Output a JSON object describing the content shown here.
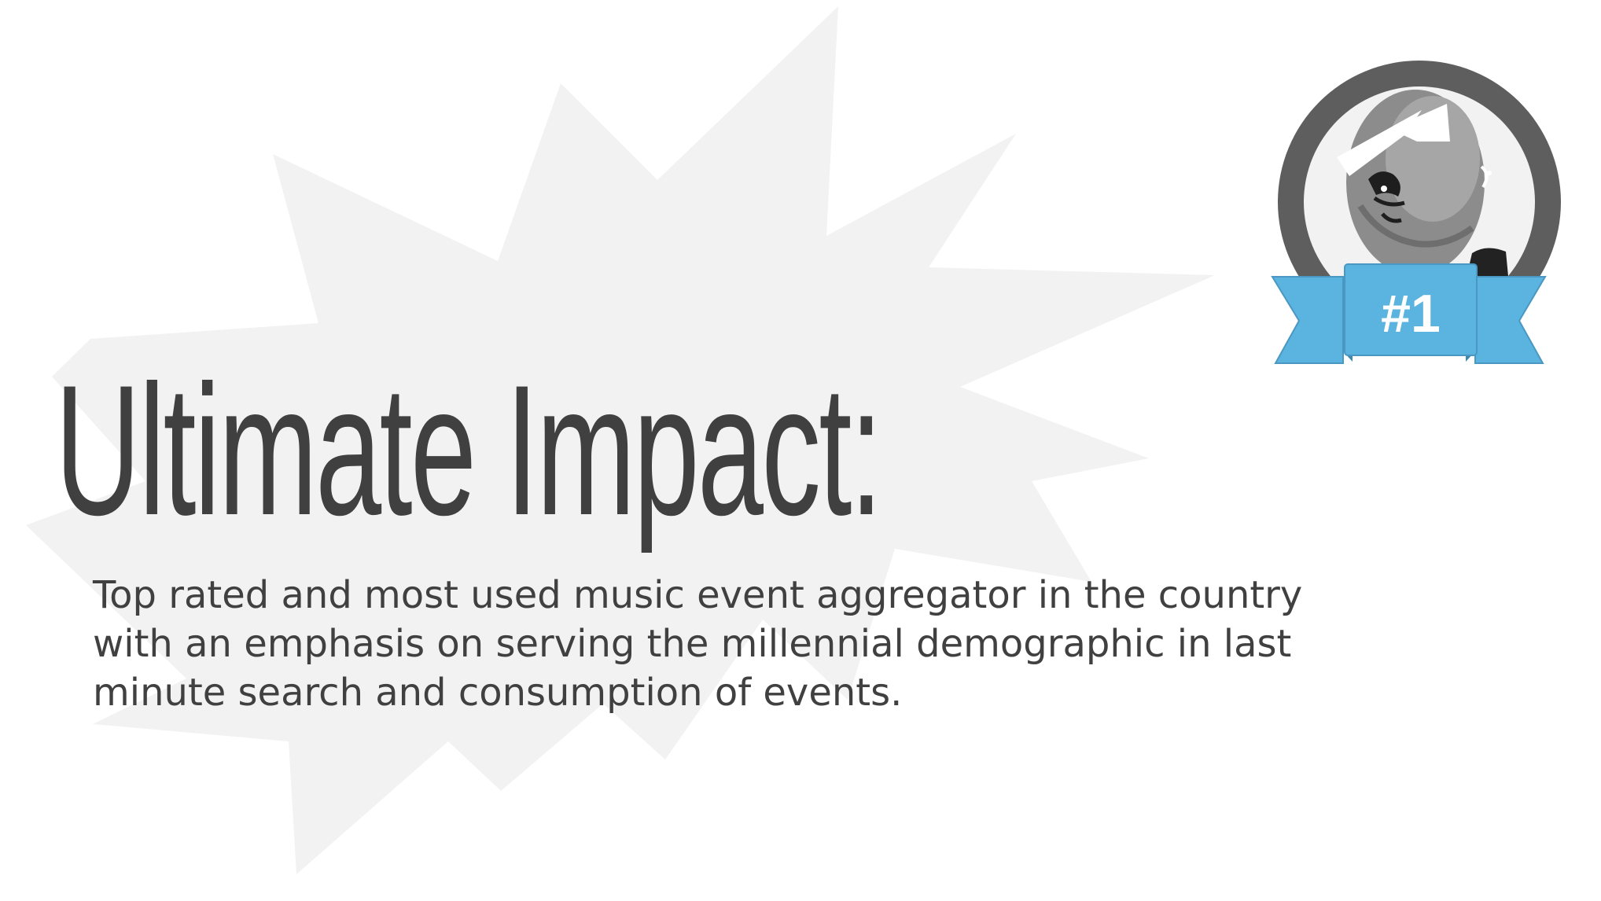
{
  "slide": {
    "title": "Ultimate Impact:",
    "body": "Top rated and most used music event aggregator in the country with an emphasis on serving the millennial demographic in last minute search and consumption of events."
  },
  "badge": {
    "label": "#1",
    "icon": "ranking-badge-icon",
    "ribbon_color": "#5bb3e0",
    "ring_color": "#5e5e5e"
  },
  "colors": {
    "background": "#ffffff",
    "burst": "#f2f2f2",
    "text": "#404040"
  }
}
